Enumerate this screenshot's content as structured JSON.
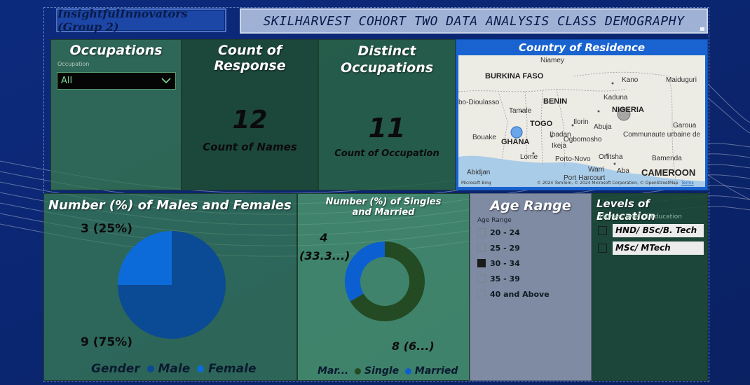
{
  "header": {
    "group_name": "InsightfulInnovators (Group 2)",
    "title": "SKILHARVEST COHORT TWO DATA ANALYSIS CLASS DEMOGRAPHY"
  },
  "occupations": {
    "title": "Occupations",
    "filter_label": "Occupation",
    "selected": "All"
  },
  "count_response": {
    "title": "Count of Response",
    "value": "12",
    "label": "Count of Names"
  },
  "distinct_occupations": {
    "title": "Distinct Occupations",
    "value": "11",
    "label": "Count of Occupation"
  },
  "map": {
    "title": "Country of Residence",
    "countries": [
      "BURKINA FASO",
      "BENIN",
      "TOGO",
      "GHANA",
      "NIGERIA",
      "CAMEROON"
    ],
    "cities": [
      "Niamey",
      "Kano",
      "Maiduguri",
      "Kaduna",
      "Tamale",
      "Ilorin",
      "Abuja",
      "Garoua",
      "Bouake",
      "Ibadan",
      "Ogbomosho",
      "Communaute urbaine de",
      "Ikeja",
      "Lome",
      "Porto-Novo",
      "Onitsha",
      "Bamenda",
      "Abidjan",
      "Warri",
      "Aba",
      "Port Harcourt",
      "bo-Dioulasso"
    ],
    "copyright": "© 2024 TomTom, © 2024 Microsoft Corporation, © OpenStreetMap",
    "terms": "Terms",
    "provider": "Microsoft Bing"
  },
  "gender": {
    "title": "Number (%) of Males and Females",
    "legend_title": "Gender",
    "chart_data": {
      "type": "pie",
      "series": [
        {
          "name": "Male",
          "value": 9,
          "label": "9 (75%)",
          "color": "#0b4a94"
        },
        {
          "name": "Female",
          "value": 3,
          "label": "3 (25%)",
          "color": "#0c6bd8"
        }
      ]
    }
  },
  "marital": {
    "title": "Number (%) of Singles and Married",
    "legend_title": "Mar...",
    "chart_data": {
      "type": "pie",
      "series": [
        {
          "name": "Single",
          "value": 8,
          "label": "8 (6...)",
          "color": "#234a22"
        },
        {
          "name": "Married",
          "value": 4,
          "label": "4 (33.3...)",
          "color": "#0c5fd0"
        }
      ]
    }
  },
  "age": {
    "title": "Age Range",
    "filter_label": "Age Range",
    "options": [
      {
        "label": "20 - 24",
        "checked": false
      },
      {
        "label": "25 - 29",
        "checked": false
      },
      {
        "label": "30 - 34",
        "checked": true
      },
      {
        "label": "35 - 39",
        "checked": false
      },
      {
        "label": "40 and Above",
        "checked": false
      }
    ]
  },
  "education": {
    "title": "Levels of Education",
    "filter_label": "Highest level of Education",
    "options": [
      {
        "label": "HND/ BSc/B. Tech"
      },
      {
        "label": "MSc/ MTech"
      }
    ]
  }
}
